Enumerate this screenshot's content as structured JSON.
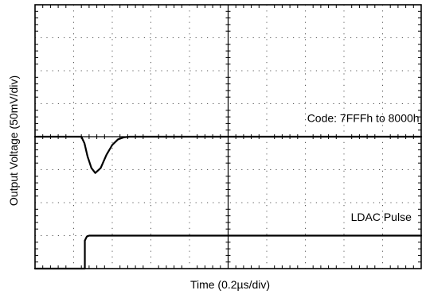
{
  "chart_data": {
    "type": "line",
    "xlabel": "Time (0.2µs/div)",
    "ylabel": "Output Voltage (50mV/div)",
    "grid": true,
    "divisions": {
      "x": 10,
      "y": 8
    },
    "xlim": [
      0,
      10
    ],
    "ylim": [
      0,
      8
    ],
    "series": [
      {
        "name": "Code: 7FFFh to 8000h",
        "color": "#000000",
        "points": [
          [
            0,
            4.0
          ],
          [
            1.2,
            4.0
          ],
          [
            1.28,
            3.8
          ],
          [
            1.36,
            3.4
          ],
          [
            1.46,
            3.05
          ],
          [
            1.56,
            2.9
          ],
          [
            1.7,
            3.05
          ],
          [
            1.85,
            3.45
          ],
          [
            2.0,
            3.75
          ],
          [
            2.15,
            3.92
          ],
          [
            2.3,
            3.98
          ],
          [
            2.45,
            4.0
          ],
          [
            10,
            4.0
          ]
        ]
      },
      {
        "name": "LDAC Pulse",
        "color": "#000000",
        "points": [
          [
            0,
            0.0
          ],
          [
            1.29,
            0.0
          ],
          [
            1.29,
            0.85
          ],
          [
            1.34,
            0.97
          ],
          [
            1.4,
            1.0
          ],
          [
            10,
            1.0
          ]
        ]
      }
    ],
    "annotations": [
      {
        "text": "Code: 7FFFh to 8000h",
        "x": 9.95,
        "y": 4.45,
        "anchor": "end"
      },
      {
        "text": "LDAC Pulse",
        "x": 9.75,
        "y": 1.45,
        "anchor": "end"
      }
    ]
  }
}
